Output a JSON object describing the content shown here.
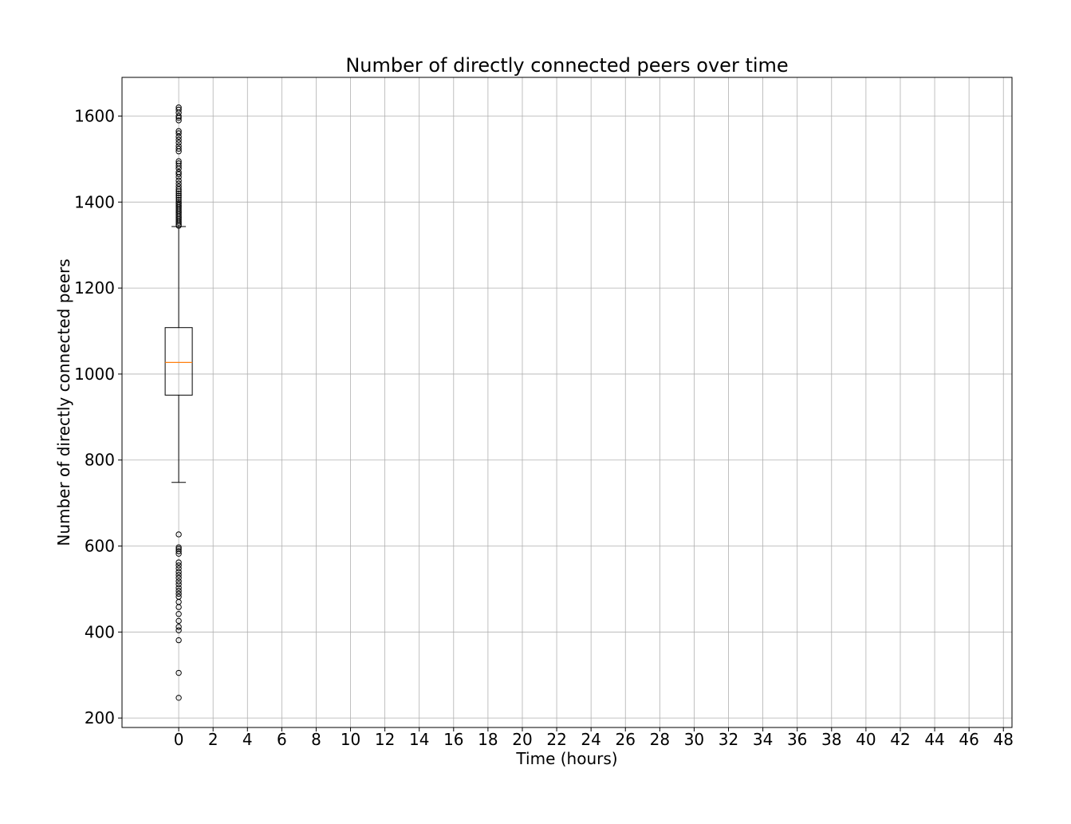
{
  "chart_data": {
    "type": "box",
    "title": "Number of directly connected peers over time",
    "xlabel": "Time (hours)",
    "ylabel": "Number of directly connected peers",
    "xlim": [
      -3.3,
      48.5
    ],
    "ylim": [
      178,
      1690
    ],
    "x_ticks": [
      0,
      2,
      4,
      6,
      8,
      10,
      12,
      14,
      16,
      18,
      20,
      22,
      24,
      26,
      28,
      30,
      32,
      34,
      36,
      38,
      40,
      42,
      44,
      46,
      48
    ],
    "y_ticks": [
      200,
      400,
      600,
      800,
      1000,
      1200,
      1400,
      1600
    ],
    "grid": true,
    "colors": {
      "box": "#000000",
      "median": "#ff7f0e",
      "grid": "#b0b0b0"
    },
    "boxes": [
      {
        "x": 0,
        "whisker_low": 748,
        "q1": 951,
        "median": 1027,
        "q3": 1108,
        "whisker_high": 1343,
        "outliers": [
          1620,
          1615,
          1608,
          1600,
          1596,
          1590,
          1565,
          1560,
          1552,
          1545,
          1538,
          1530,
          1524,
          1518,
          1495,
          1490,
          1484,
          1478,
          1470,
          1465,
          1458,
          1450,
          1443,
          1436,
          1430,
          1425,
          1420,
          1415,
          1410,
          1405,
          1400,
          1396,
          1392,
          1388,
          1384,
          1380,
          1376,
          1372,
          1368,
          1364,
          1360,
          1356,
          1352,
          1348,
          1345,
          627,
          597,
          593,
          588,
          582,
          562,
          555,
          548,
          540,
          533,
          526,
          518,
          511,
          503,
          496,
          489,
          482,
          470,
          458,
          442,
          426,
          412,
          404,
          381,
          305,
          247
        ]
      }
    ]
  }
}
